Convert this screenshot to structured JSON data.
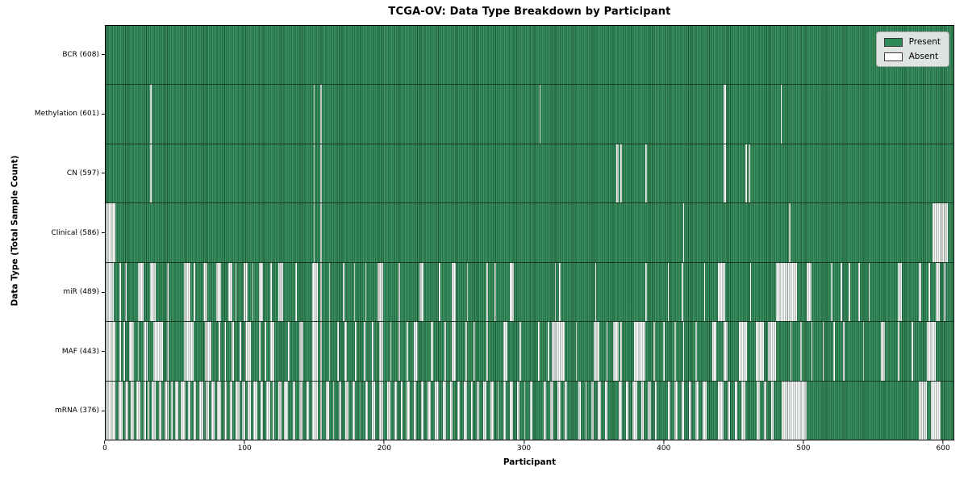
{
  "colors": {
    "present": "#2e8b57",
    "absent": "#ffffff",
    "legend_bg": "#e9e9e9",
    "edge": "#0a2214"
  },
  "chart_data": {
    "type": "heatmap",
    "title": "TCGA-OV: Data Type Breakdown by Participant",
    "xlabel": "Participant",
    "ylabel": "Data Type (Total Sample Count)",
    "legend": {
      "present": "Present",
      "absent": "Absent"
    },
    "legend_position": "upper right",
    "grid": false,
    "n_participants": 608,
    "xlim": [
      0,
      608
    ],
    "xticks": [
      0,
      100,
      200,
      300,
      400,
      500,
      600
    ],
    "cell_states": [
      "present",
      "absent"
    ],
    "rows": [
      {
        "name": "BCR",
        "label": "BCR (608)",
        "present_count": 608,
        "absent_runs": []
      },
      {
        "name": "Methylation",
        "label": "Methylation (601)",
        "present_count": 601,
        "absent_runs": [
          [
            32,
            32
          ],
          [
            149,
            149
          ],
          [
            154,
            154
          ],
          [
            311,
            311
          ],
          [
            443,
            444
          ],
          [
            484,
            484
          ]
        ]
      },
      {
        "name": "CN",
        "label": "CN (597)",
        "present_count": 597,
        "absent_runs": [
          [
            32,
            32
          ],
          [
            149,
            149
          ],
          [
            154,
            154
          ],
          [
            366,
            367
          ],
          [
            369,
            369
          ],
          [
            387,
            387
          ],
          [
            443,
            444
          ],
          [
            459,
            459
          ],
          [
            461,
            461
          ]
        ]
      },
      {
        "name": "Clinical",
        "label": "Clinical (586)",
        "present_count": 586,
        "absent_runs": [
          [
            0,
            6
          ],
          [
            149,
            149
          ],
          [
            154,
            154
          ],
          [
            414,
            414
          ],
          [
            490,
            490
          ],
          [
            593,
            603
          ]
        ]
      },
      {
        "name": "miR",
        "label": "miR (489)",
        "present_count": 489,
        "absent_runs": [
          [
            0,
            5
          ],
          [
            10,
            10
          ],
          [
            14,
            14
          ],
          [
            23,
            26
          ],
          [
            32,
            35
          ],
          [
            44,
            44
          ],
          [
            56,
            60
          ],
          [
            63,
            63
          ],
          [
            70,
            72
          ],
          [
            79,
            82
          ],
          [
            88,
            90
          ],
          [
            93,
            93
          ],
          [
            99,
            101
          ],
          [
            105,
            105
          ],
          [
            110,
            112
          ],
          [
            118,
            118
          ],
          [
            124,
            126
          ],
          [
            136,
            136
          ],
          [
            148,
            151
          ],
          [
            154,
            154
          ],
          [
            160,
            160
          ],
          [
            170,
            170
          ],
          [
            178,
            178
          ],
          [
            186,
            186
          ],
          [
            195,
            198
          ],
          [
            210,
            210
          ],
          [
            225,
            227
          ],
          [
            239,
            239
          ],
          [
            248,
            250
          ],
          [
            259,
            259
          ],
          [
            273,
            273
          ],
          [
            279,
            279
          ],
          [
            290,
            292
          ],
          [
            322,
            322
          ],
          [
            325,
            325
          ],
          [
            351,
            351
          ],
          [
            387,
            387
          ],
          [
            403,
            403
          ],
          [
            413,
            413
          ],
          [
            429,
            429
          ],
          [
            439,
            443
          ],
          [
            462,
            462
          ],
          [
            481,
            495
          ],
          [
            503,
            505
          ],
          [
            520,
            520
          ],
          [
            527,
            527
          ],
          [
            533,
            533
          ],
          [
            540,
            540
          ],
          [
            547,
            547
          ],
          [
            568,
            570
          ],
          [
            583,
            584
          ],
          [
            590,
            590
          ],
          [
            595,
            597
          ],
          [
            601,
            601
          ]
        ]
      },
      {
        "name": "MAF",
        "label": "MAF (443)",
        "present_count": 443,
        "absent_runs": [
          [
            0,
            6
          ],
          [
            10,
            10
          ],
          [
            13,
            13
          ],
          [
            17,
            19
          ],
          [
            23,
            23
          ],
          [
            27,
            29
          ],
          [
            34,
            40
          ],
          [
            44,
            44
          ],
          [
            56,
            62
          ],
          [
            71,
            75
          ],
          [
            81,
            81
          ],
          [
            85,
            85
          ],
          [
            90,
            91
          ],
          [
            96,
            96
          ],
          [
            100,
            103
          ],
          [
            110,
            110
          ],
          [
            114,
            114
          ],
          [
            118,
            120
          ],
          [
            131,
            131
          ],
          [
            139,
            141
          ],
          [
            148,
            151
          ],
          [
            154,
            154
          ],
          [
            160,
            160
          ],
          [
            166,
            166
          ],
          [
            171,
            172
          ],
          [
            179,
            179
          ],
          [
            185,
            185
          ],
          [
            191,
            191
          ],
          [
            196,
            198
          ],
          [
            204,
            204
          ],
          [
            210,
            210
          ],
          [
            216,
            216
          ],
          [
            221,
            223
          ],
          [
            233,
            234
          ],
          [
            243,
            243
          ],
          [
            248,
            250
          ],
          [
            258,
            258
          ],
          [
            264,
            264
          ],
          [
            273,
            273
          ],
          [
            285,
            287
          ],
          [
            297,
            297
          ],
          [
            310,
            310
          ],
          [
            317,
            317
          ],
          [
            320,
            328
          ],
          [
            337,
            337
          ],
          [
            350,
            353
          ],
          [
            359,
            359
          ],
          [
            364,
            367
          ],
          [
            369,
            369
          ],
          [
            379,
            386
          ],
          [
            393,
            393
          ],
          [
            400,
            400
          ],
          [
            408,
            408
          ],
          [
            414,
            414
          ],
          [
            423,
            423
          ],
          [
            435,
            437
          ],
          [
            443,
            445
          ],
          [
            454,
            459
          ],
          [
            466,
            471
          ],
          [
            475,
            480
          ],
          [
            491,
            491
          ],
          [
            498,
            498
          ],
          [
            506,
            506
          ],
          [
            514,
            514
          ],
          [
            522,
            522
          ],
          [
            529,
            529
          ],
          [
            543,
            543
          ],
          [
            556,
            558
          ],
          [
            568,
            568
          ],
          [
            578,
            578
          ],
          [
            589,
            594
          ]
        ]
      },
      {
        "name": "mRNA",
        "label": "mRNA (376)",
        "present_count": 376,
        "absent_runs": [
          [
            0,
            6
          ],
          [
            9,
            11
          ],
          [
            14,
            15
          ],
          [
            18,
            19
          ],
          [
            22,
            24
          ],
          [
            27,
            28
          ],
          [
            30,
            30
          ],
          [
            33,
            35
          ],
          [
            38,
            39
          ],
          [
            42,
            44
          ],
          [
            47,
            47
          ],
          [
            50,
            51
          ],
          [
            54,
            56
          ],
          [
            59,
            60
          ],
          [
            63,
            64
          ],
          [
            67,
            69
          ],
          [
            72,
            73
          ],
          [
            76,
            77
          ],
          [
            80,
            82
          ],
          [
            85,
            86
          ],
          [
            89,
            90
          ],
          [
            93,
            95
          ],
          [
            98,
            99
          ],
          [
            102,
            103
          ],
          [
            106,
            108
          ],
          [
            111,
            112
          ],
          [
            115,
            117
          ],
          [
            120,
            120
          ],
          [
            124,
            125
          ],
          [
            128,
            130
          ],
          [
            134,
            135
          ],
          [
            139,
            140
          ],
          [
            144,
            145
          ],
          [
            148,
            151
          ],
          [
            154,
            154
          ],
          [
            158,
            159
          ],
          [
            163,
            163
          ],
          [
            167,
            168
          ],
          [
            172,
            173
          ],
          [
            177,
            178
          ],
          [
            182,
            182
          ],
          [
            186,
            187
          ],
          [
            191,
            192
          ],
          [
            196,
            198
          ],
          [
            202,
            203
          ],
          [
            207,
            208
          ],
          [
            212,
            212
          ],
          [
            216,
            217
          ],
          [
            221,
            222
          ],
          [
            226,
            227
          ],
          [
            231,
            232
          ],
          [
            236,
            238
          ],
          [
            242,
            243
          ],
          [
            247,
            248
          ],
          [
            252,
            253
          ],
          [
            257,
            258
          ],
          [
            262,
            262
          ],
          [
            266,
            267
          ],
          [
            271,
            272
          ],
          [
            276,
            277
          ],
          [
            281,
            281
          ],
          [
            285,
            286
          ],
          [
            290,
            291
          ],
          [
            295,
            296
          ],
          [
            300,
            300
          ],
          [
            304,
            305
          ],
          [
            314,
            315
          ],
          [
            319,
            320
          ],
          [
            324,
            325
          ],
          [
            329,
            330
          ],
          [
            339,
            340
          ],
          [
            344,
            344
          ],
          [
            348,
            349
          ],
          [
            353,
            354
          ],
          [
            358,
            359
          ],
          [
            368,
            369
          ],
          [
            373,
            374
          ],
          [
            378,
            380
          ],
          [
            384,
            385
          ],
          [
            389,
            390
          ],
          [
            394,
            394
          ],
          [
            403,
            404
          ],
          [
            408,
            409
          ],
          [
            413,
            414
          ],
          [
            418,
            419
          ],
          [
            423,
            424
          ],
          [
            428,
            430
          ],
          [
            439,
            442
          ],
          [
            446,
            447
          ],
          [
            451,
            452
          ],
          [
            456,
            458
          ],
          [
            467,
            468
          ],
          [
            472,
            473
          ],
          [
            477,
            478
          ],
          [
            485,
            502
          ],
          [
            583,
            588
          ],
          [
            592,
            598
          ]
        ]
      }
    ]
  }
}
